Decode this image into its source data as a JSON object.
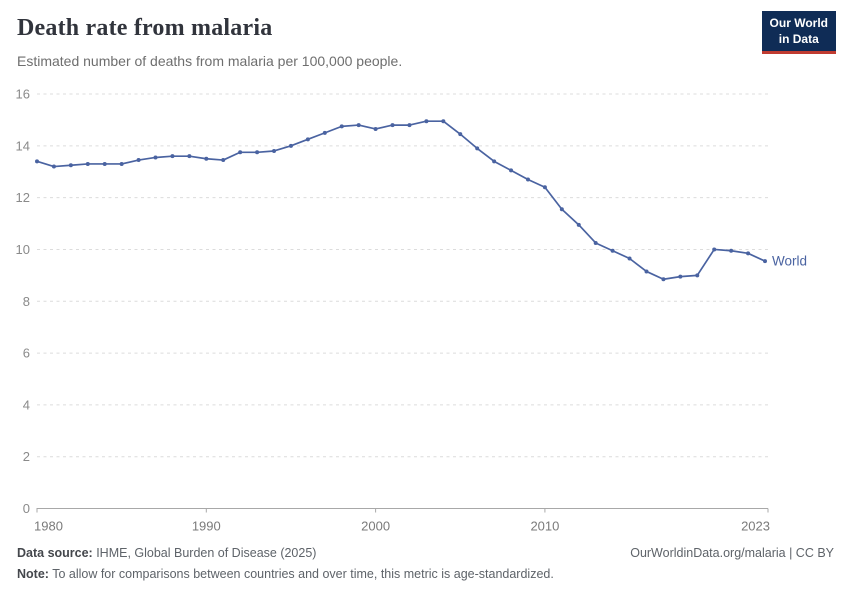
{
  "header": {
    "title": "Death rate from malaria",
    "subtitle": "Estimated number of deaths from malaria per 100,000 people.",
    "logo": {
      "line1": "Our World",
      "line2": "in Data",
      "background_color": "#0F2C56",
      "accent_color": "#C03B31"
    }
  },
  "chart_data": {
    "type": "line",
    "title": "Death rate from malaria",
    "xlabel": "",
    "ylabel": "",
    "ylim": [
      0,
      16
    ],
    "yticks": [
      0,
      2,
      4,
      6,
      8,
      10,
      12,
      14,
      16
    ],
    "xticks": [
      1980,
      1990,
      2000,
      2010,
      2023
    ],
    "grid": "horizontal-dashed",
    "legend": "line-end-label",
    "x": [
      1980,
      1981,
      1982,
      1983,
      1984,
      1985,
      1986,
      1987,
      1988,
      1989,
      1990,
      1991,
      1992,
      1993,
      1994,
      1995,
      1996,
      1997,
      1998,
      1999,
      2000,
      2001,
      2002,
      2003,
      2004,
      2005,
      2006,
      2007,
      2008,
      2009,
      2010,
      2011,
      2012,
      2013,
      2014,
      2015,
      2016,
      2017,
      2018,
      2019,
      2020,
      2021,
      2022,
      2023
    ],
    "series": [
      {
        "name": "World",
        "color": "#4A63A1",
        "values": [
          13.4,
          13.2,
          13.25,
          13.3,
          13.3,
          13.3,
          13.45,
          13.55,
          13.6,
          13.6,
          13.5,
          13.45,
          13.75,
          13.75,
          13.8,
          14.0,
          14.25,
          14.5,
          14.75,
          14.8,
          14.65,
          14.8,
          14.8,
          14.95,
          14.95,
          14.45,
          13.9,
          13.4,
          13.05,
          12.7,
          12.4,
          11.55,
          10.95,
          10.25,
          9.95,
          9.65,
          9.15,
          8.85,
          8.95,
          9.0,
          10.0,
          9.95,
          9.85,
          9.55
        ]
      }
    ]
  },
  "footer": {
    "datasource_label": "Data source:",
    "datasource_value": " IHME, Global Burden of Disease (2025)",
    "rights": "OurWorldinData.org/malaria | CC BY",
    "note_label": "Note:",
    "note_value": " To allow for comparisons between countries and over time, this metric is age-standardized."
  }
}
